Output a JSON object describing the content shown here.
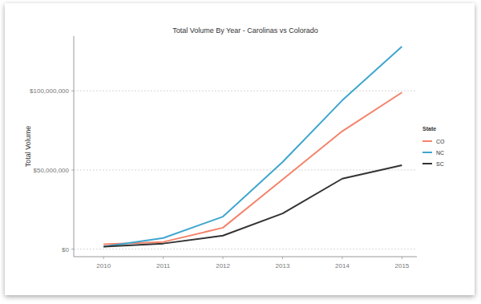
{
  "chart_data": {
    "type": "line",
    "title": "Total Volume By Year - Carolinas vs Colorado",
    "y_label": "Total Volume",
    "legend_title": "State",
    "x": [
      2010,
      2011,
      2012,
      2013,
      2014,
      2015
    ],
    "series": [
      {
        "name": "CO",
        "color": "#f4836b",
        "values": [
          3000000,
          4500000,
          13500000,
          44000000,
          74500000,
          99000000
        ]
      },
      {
        "name": "NC",
        "color": "#3fa6cf",
        "values": [
          1500000,
          7000000,
          20500000,
          55000000,
          94000000,
          128000000
        ]
      },
      {
        "name": "SC",
        "color": "#333333",
        "values": [
          1500000,
          3500000,
          8500000,
          22500000,
          44500000,
          53000000
        ]
      }
    ],
    "xlim": [
      2009.5,
      2015.25
    ],
    "xticks": [
      2010,
      2011,
      2012,
      2013,
      2014,
      2015
    ],
    "ylim": [
      -4800000,
      134600000
    ],
    "yticks": [
      {
        "value": 0,
        "label": "$0"
      },
      {
        "value": 50000000,
        "label": "$50,000,000"
      },
      {
        "value": 100000000,
        "label": "$100,000,000"
      }
    ],
    "grid": true,
    "legend": "right"
  }
}
